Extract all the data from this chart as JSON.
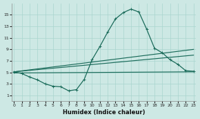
{
  "xlabel": "Humidex (Indice chaleur)",
  "bg_color": "#cde8e4",
  "grid_color": "#a8d4ce",
  "line_color": "#1a6b5a",
  "x_data": [
    0,
    1,
    2,
    3,
    4,
    5,
    6,
    7,
    8,
    9,
    10,
    11,
    12,
    13,
    14,
    15,
    16,
    17,
    18,
    19,
    20,
    21,
    22,
    23
  ],
  "main_line": [
    5.1,
    4.8,
    4.2,
    3.7,
    3.0,
    2.6,
    2.5,
    1.8,
    2.0,
    3.8,
    7.2,
    9.5,
    12.0,
    14.3,
    15.4,
    16.0,
    15.5,
    12.5,
    9.2,
    8.4,
    7.2,
    6.4,
    5.3,
    5.2
  ],
  "diag_line1": [
    [
      0,
      23
    ],
    [
      5.1,
      9.0
    ]
  ],
  "diag_line2": [
    [
      0,
      23
    ],
    [
      5.1,
      8.0
    ]
  ],
  "flat_line": [
    [
      0,
      23
    ],
    [
      4.9,
      5.1
    ]
  ],
  "ylim": [
    0,
    17
  ],
  "xlim": [
    -0.3,
    23.3
  ],
  "yticks": [
    1,
    3,
    5,
    7,
    9,
    11,
    13,
    15
  ],
  "xticks": [
    0,
    1,
    2,
    3,
    4,
    5,
    6,
    7,
    8,
    9,
    10,
    11,
    12,
    13,
    14,
    15,
    16,
    17,
    18,
    19,
    20,
    21,
    22,
    23
  ],
  "xlabel_fontsize": 6,
  "tick_fontsize": 4.5
}
